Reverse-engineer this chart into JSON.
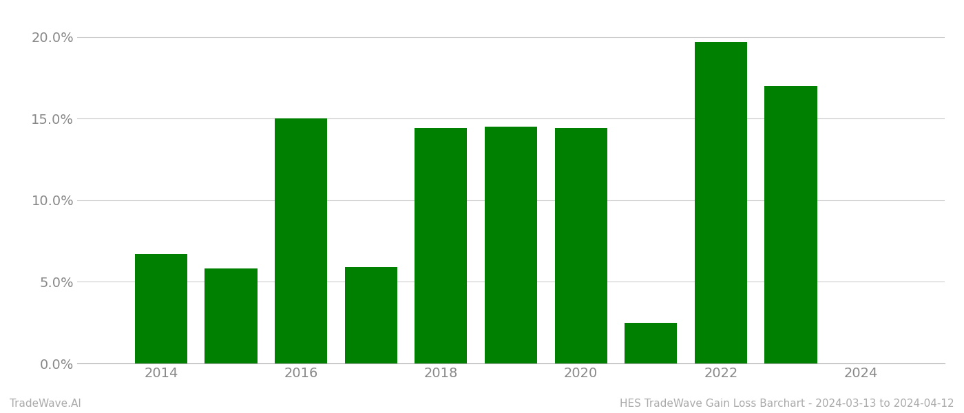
{
  "years": [
    2014,
    2015,
    2016,
    2017,
    2018,
    2019,
    2020,
    2021,
    2022,
    2023
  ],
  "values": [
    0.067,
    0.058,
    0.15,
    0.059,
    0.144,
    0.145,
    0.144,
    0.025,
    0.197,
    0.17
  ],
  "bar_color": "#008000",
  "title": "HES TradeWave Gain Loss Barchart - 2024-03-13 to 2024-04-12",
  "watermark": "TradeWave.AI",
  "ylim": [
    0,
    0.215
  ],
  "yticks": [
    0.0,
    0.05,
    0.1,
    0.15,
    0.2
  ],
  "ytick_labels": [
    "0.0%",
    "5.0%",
    "10.0%",
    "15.0%",
    "20.0%"
  ],
  "background_color": "#ffffff",
  "grid_color": "#cccccc",
  "bar_width": 0.75,
  "xlim_left": 2012.8,
  "xlim_right": 2025.2,
  "xticks": [
    2014,
    2016,
    2018,
    2020,
    2022,
    2024
  ]
}
